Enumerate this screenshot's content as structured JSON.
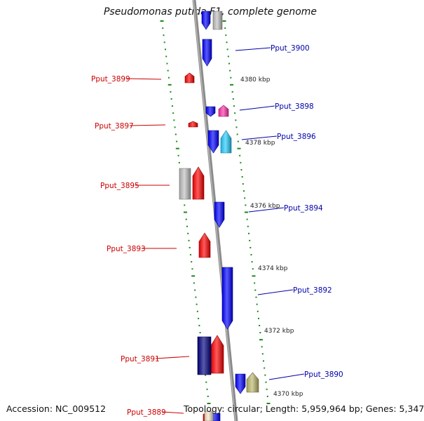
{
  "title": "Pseudomonas putida F1, complete genome",
  "footer": {
    "accession": "Accession: NC_009512",
    "topology": "Topology: circular; Length: 5,959,964 bp; Genes: 5,347"
  },
  "colors": {
    "backbone": "#8a8a8a",
    "tick": "#1a8a1a",
    "label_left": "#cc0000",
    "label_right": "#0000aa"
  },
  "scale_labels": [
    "4380 kbp",
    "4378 kbp",
    "4376 kbp",
    "4374 kbp",
    "4372 kbp",
    "4370 kbp"
  ],
  "genes_left": [
    {
      "label": "Pput_3899",
      "color": "#ff0000"
    },
    {
      "label": "Pput_3897",
      "color": "#ff0000"
    },
    {
      "label": "Pput_3895",
      "color": "#ff0000"
    },
    {
      "label": "Pput_3893",
      "color": "#ff0000"
    },
    {
      "label": "Pput_3891",
      "color": "#ff0000"
    },
    {
      "label": "Pput_3889",
      "color": "#ff0000"
    }
  ],
  "genes_right": [
    {
      "label": "Pput_3900",
      "color": "#0000ff"
    },
    {
      "label": "Pput_3898",
      "color": "#0000ff"
    },
    {
      "label": "Pput_3896",
      "color": "#0000ff"
    },
    {
      "label": "Pput_3894",
      "color": "#0000ff"
    },
    {
      "label": "Pput_3892",
      "color": "#0000ff"
    },
    {
      "label": "Pput_3890",
      "color": "#0000ff"
    }
  ],
  "other_features": [
    {
      "name": "gray-feature",
      "color": "#c0c0c0"
    },
    {
      "name": "magenta-feature",
      "color": "#ff33aa"
    },
    {
      "name": "cyan-feature",
      "color": "#22ccff"
    },
    {
      "name": "navy-feature",
      "color": "#000080"
    },
    {
      "name": "khaki-feature",
      "color": "#bdb76b"
    }
  ]
}
